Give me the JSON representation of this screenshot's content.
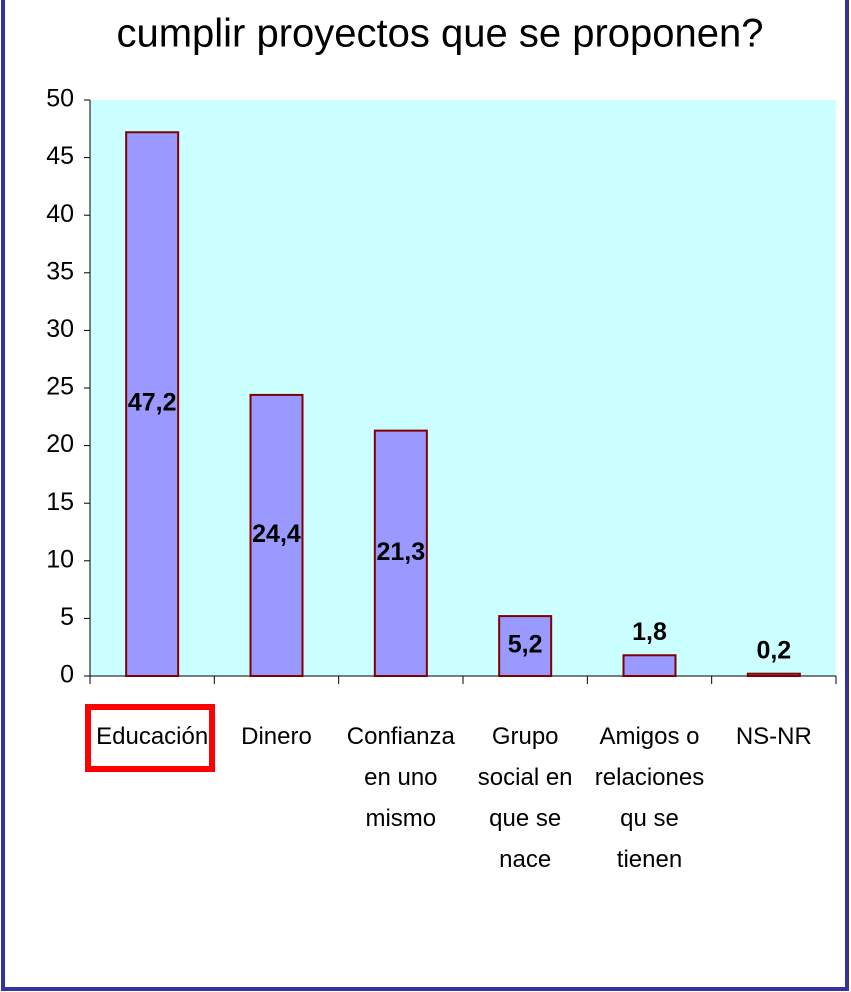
{
  "chart_data": {
    "type": "bar",
    "title": "cumplir proyectos que se proponen?",
    "categories": [
      "Educación",
      "Dinero",
      "Confianza en uno mismo",
      "Grupo social en que se nace",
      "Amigos o relaciones qu se tienen",
      "NS-NR"
    ],
    "values": [
      47.2,
      24.4,
      21.3,
      5.2,
      1.8,
      0.2
    ],
    "value_labels": [
      "47,2",
      "24,4",
      "21,3",
      "5,2",
      "1,8",
      "0,2"
    ],
    "color": "#9999ff",
    "ylim": [
      0,
      50
    ],
    "yticks": [
      0,
      5,
      10,
      15,
      20,
      25,
      30,
      35,
      40,
      45,
      50
    ]
  }
}
